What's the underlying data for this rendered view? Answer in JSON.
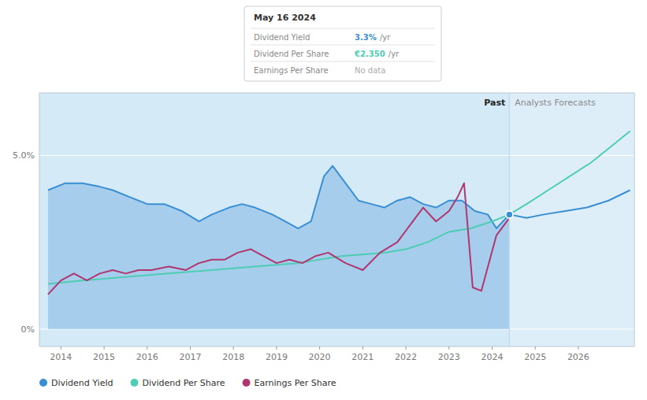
{
  "chart_data": {
    "type": "line",
    "xlim": [
      2013.5,
      2027.3
    ],
    "xticks": [
      2014,
      2015,
      2016,
      2017,
      2018,
      2019,
      2020,
      2021,
      2022,
      2023,
      2024,
      2025,
      2026
    ],
    "ylim": [
      -0.005,
      0.068
    ],
    "yticks": [
      {
        "value": 0.0,
        "label": "0%"
      },
      {
        "value": 0.05,
        "label": "5.0%"
      }
    ],
    "grid": true,
    "legend": "bottom",
    "divider": {
      "x": 2024.4,
      "colors": [
        "#d4eaf7",
        "#deeef8"
      ]
    },
    "annotations": [
      {
        "text": "Past"
      },
      {
        "text": "Analysts Forecasts"
      }
    ],
    "series": [
      {
        "name": "Dividend Yield",
        "color": "#3a8fd4",
        "type": "area",
        "x": [
          2013.7,
          2014.1,
          2014.5,
          2014.9,
          2015.2,
          2015.6,
          2016.0,
          2016.4,
          2016.8,
          2017.2,
          2017.5,
          2017.9,
          2018.2,
          2018.5,
          2018.9,
          2019.2,
          2019.5,
          2019.8,
          2020.1,
          2020.3,
          2020.6,
          2020.9,
          2021.2,
          2021.5,
          2021.8,
          2022.1,
          2022.4,
          2022.7,
          2023.0,
          2023.3,
          2023.6,
          2023.9,
          2024.1,
          2024.4
        ],
        "values": [
          0.04,
          0.042,
          0.042,
          0.041,
          0.04,
          0.038,
          0.036,
          0.036,
          0.034,
          0.031,
          0.033,
          0.035,
          0.036,
          0.035,
          0.033,
          0.031,
          0.029,
          0.031,
          0.044,
          0.047,
          0.042,
          0.037,
          0.036,
          0.035,
          0.037,
          0.038,
          0.036,
          0.035,
          0.037,
          0.037,
          0.034,
          0.033,
          0.029,
          0.033
        ],
        "forecast": {
          "x": [
            2024.4,
            2024.8,
            2025.2,
            2025.7,
            2026.2,
            2026.7,
            2027.2
          ],
          "values": [
            0.033,
            0.032,
            0.033,
            0.034,
            0.035,
            0.037,
            0.04
          ]
        }
      },
      {
        "name": "Dividend Per Share",
        "color": "#4ecdb4",
        "type": "line",
        "x": [
          2013.7,
          2014.5,
          2015.5,
          2016.5,
          2017.5,
          2018.5,
          2019.5,
          2020.5,
          2021.5,
          2022.0,
          2022.5,
          2023.0,
          2023.5,
          2024.0,
          2024.4
        ],
        "values": [
          0.013,
          0.014,
          0.015,
          0.016,
          0.017,
          0.018,
          0.019,
          0.021,
          0.022,
          0.023,
          0.025,
          0.028,
          0.029,
          0.031,
          0.033
        ],
        "forecast": {
          "x": [
            2024.4,
            2024.8,
            2025.3,
            2025.8,
            2026.3,
            2026.8,
            2027.2
          ],
          "values": [
            0.033,
            0.036,
            0.04,
            0.044,
            0.048,
            0.053,
            0.057
          ]
        }
      },
      {
        "name": "Earnings Per Share",
        "color": "#b0366e",
        "type": "line",
        "x": [
          2013.7,
          2014.0,
          2014.3,
          2014.6,
          2014.9,
          2015.2,
          2015.5,
          2015.8,
          2016.1,
          2016.5,
          2016.9,
          2017.2,
          2017.5,
          2017.8,
          2018.1,
          2018.4,
          2018.7,
          2019.0,
          2019.3,
          2019.6,
          2019.9,
          2020.2,
          2020.6,
          2021.0,
          2021.4,
          2021.8,
          2022.1,
          2022.4,
          2022.7,
          2023.0,
          2023.2,
          2023.35,
          2023.55,
          2023.75,
          2024.1,
          2024.4
        ],
        "values": [
          0.01,
          0.014,
          0.016,
          0.014,
          0.016,
          0.017,
          0.016,
          0.017,
          0.017,
          0.018,
          0.017,
          0.019,
          0.02,
          0.02,
          0.022,
          0.023,
          0.021,
          0.019,
          0.02,
          0.019,
          0.021,
          0.022,
          0.019,
          0.017,
          0.022,
          0.025,
          0.03,
          0.035,
          0.031,
          0.034,
          0.038,
          0.042,
          0.012,
          0.011,
          0.027,
          0.032
        ]
      }
    ],
    "tooltip": {
      "title": "May 16 2024",
      "rows": [
        {
          "label": "Dividend Yield",
          "value": "3.3%",
          "unit": " /yr"
        },
        {
          "label": "Dividend Per Share",
          "value": "€2.350",
          "unit": " /yr"
        },
        {
          "label": "Earnings Per Share",
          "value": "No data"
        }
      ]
    }
  }
}
